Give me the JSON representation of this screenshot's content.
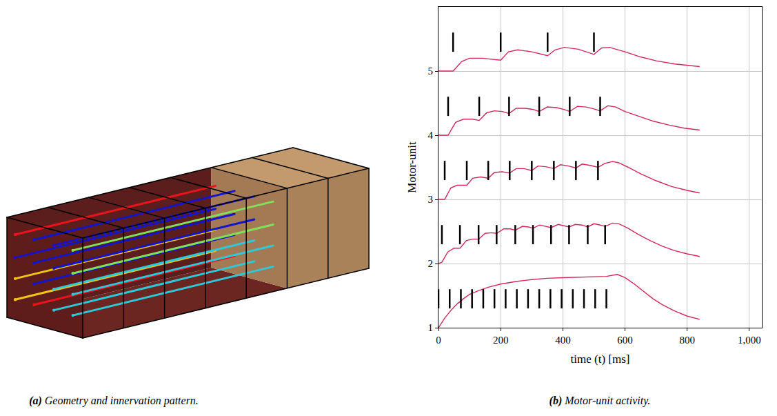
{
  "panel_a": {
    "caption_label": "(a)",
    "caption": "Geometry and innervation pattern.",
    "innervation": [
      [
        "#e8141c",
        "#1414c8",
        "#1414c8",
        "#80e05a"
      ],
      [
        "#1414c8",
        "#1414c8",
        "#1414c8",
        "#80e05a"
      ],
      [
        "#f0c419",
        "#1414c8",
        "#2ec8d8",
        "#2ec8d8"
      ],
      [
        "#f0c419",
        "#e8141c",
        "#2ec8d8",
        "#2ec8d8"
      ]
    ]
  },
  "chart_data": {
    "type": "line",
    "caption_label": "(b)",
    "caption": "Motor-unit activity.",
    "xlabel": "time (t) [ms]",
    "ylabel": "Motor-unit",
    "xlim": [
      0,
      1040
    ],
    "ylim": [
      1,
      6
    ],
    "xticks": [
      0,
      200,
      400,
      600,
      800,
      {
        "value": 1000,
        "label": "1,000"
      }
    ],
    "yticks": [
      1,
      2,
      3,
      4,
      5
    ],
    "grid": true,
    "series": [
      {
        "color": "#d0285c",
        "x": [
          0,
          20,
          40,
          60,
          80,
          100,
          130,
          160,
          200,
          250,
          300,
          350,
          400,
          450,
          500,
          540,
          575,
          600,
          630,
          660,
          690,
          720,
          760,
          800,
          840
        ],
        "values": [
          1.0,
          1.15,
          1.27,
          1.37,
          1.45,
          1.52,
          1.58,
          1.63,
          1.68,
          1.72,
          1.75,
          1.77,
          1.78,
          1.79,
          1.8,
          1.8,
          1.83,
          1.78,
          1.68,
          1.56,
          1.45,
          1.36,
          1.26,
          1.18,
          1.13
        ],
        "spike_times": [
          0,
          36,
          72,
          108,
          144,
          180,
          216,
          252,
          288,
          324,
          360,
          396,
          432,
          468,
          504,
          540
        ],
        "spike_y": [
          1.3,
          1.6
        ]
      },
      {
        "color": "#d0285c",
        "x": [
          0,
          11,
          30,
          50,
          69,
          90,
          110,
          129,
          150,
          170,
          187,
          210,
          230,
          247,
          270,
          290,
          304,
          325,
          345,
          362,
          385,
          405,
          420,
          440,
          462,
          480,
          500,
          520,
          536,
          560,
          580,
          610,
          640,
          680,
          720,
          760,
          800,
          840
        ],
        "values": [
          2.0,
          2.02,
          2.18,
          2.24,
          2.24,
          2.36,
          2.38,
          2.38,
          2.47,
          2.48,
          2.47,
          2.54,
          2.54,
          2.52,
          2.58,
          2.57,
          2.55,
          2.6,
          2.58,
          2.56,
          2.61,
          2.59,
          2.57,
          2.61,
          2.6,
          2.57,
          2.62,
          2.6,
          2.58,
          2.63,
          2.62,
          2.55,
          2.46,
          2.36,
          2.27,
          2.2,
          2.15,
          2.11
        ],
        "spike_times": [
          11,
          69,
          129,
          187,
          247,
          304,
          362,
          420,
          480,
          536
        ],
        "spike_y": [
          2.3,
          2.6
        ]
      },
      {
        "color": "#d0285c",
        "x": [
          0,
          20,
          40,
          60,
          91,
          110,
          135,
          160,
          180,
          205,
          229,
          250,
          275,
          300,
          320,
          345,
          371,
          392,
          418,
          442,
          462,
          488,
          513,
          535,
          560,
          580,
          610,
          650,
          700,
          750,
          800,
          840
        ],
        "values": [
          3.0,
          3.0,
          3.18,
          3.22,
          3.22,
          3.33,
          3.35,
          3.33,
          3.42,
          3.43,
          3.41,
          3.48,
          3.48,
          3.45,
          3.52,
          3.51,
          3.48,
          3.54,
          3.52,
          3.49,
          3.55,
          3.53,
          3.5,
          3.56,
          3.59,
          3.57,
          3.5,
          3.4,
          3.29,
          3.2,
          3.14,
          3.1
        ],
        "spike_times": [
          20,
          91,
          160,
          229,
          300,
          371,
          442,
          513
        ],
        "spike_y": [
          3.3,
          3.6
        ]
      },
      {
        "color": "#d0285c",
        "x": [
          0,
          31,
          55,
          80,
          110,
          131,
          155,
          180,
          205,
          227,
          250,
          280,
          305,
          324,
          350,
          380,
          405,
          422,
          447,
          475,
          500,
          520,
          545,
          570,
          600,
          640,
          690,
          740,
          790,
          840
        ],
        "values": [
          4.0,
          4.0,
          4.2,
          4.25,
          4.25,
          4.23,
          4.35,
          4.38,
          4.37,
          4.34,
          4.42,
          4.42,
          4.4,
          4.37,
          4.44,
          4.43,
          4.4,
          4.37,
          4.45,
          4.44,
          4.41,
          4.38,
          4.46,
          4.44,
          4.37,
          4.3,
          4.22,
          4.16,
          4.11,
          4.08
        ],
        "spike_times": [
          31,
          131,
          227,
          324,
          422,
          520
        ],
        "spike_y": [
          4.3,
          4.6
        ]
      },
      {
        "color": "#d0285c",
        "x": [
          0,
          47,
          75,
          100,
          140,
          200,
          225,
          255,
          300,
          351,
          375,
          405,
          450,
          500,
          525,
          550,
          600,
          650,
          700,
          760,
          840
        ],
        "values": [
          5.0,
          5.0,
          5.15,
          5.2,
          5.2,
          5.17,
          5.3,
          5.33,
          5.3,
          5.24,
          5.33,
          5.37,
          5.34,
          5.26,
          5.36,
          5.37,
          5.3,
          5.22,
          5.16,
          5.11,
          5.07
        ],
        "spike_times": [
          47,
          200,
          351,
          500
        ],
        "spike_y": [
          5.3,
          5.6
        ]
      }
    ]
  }
}
